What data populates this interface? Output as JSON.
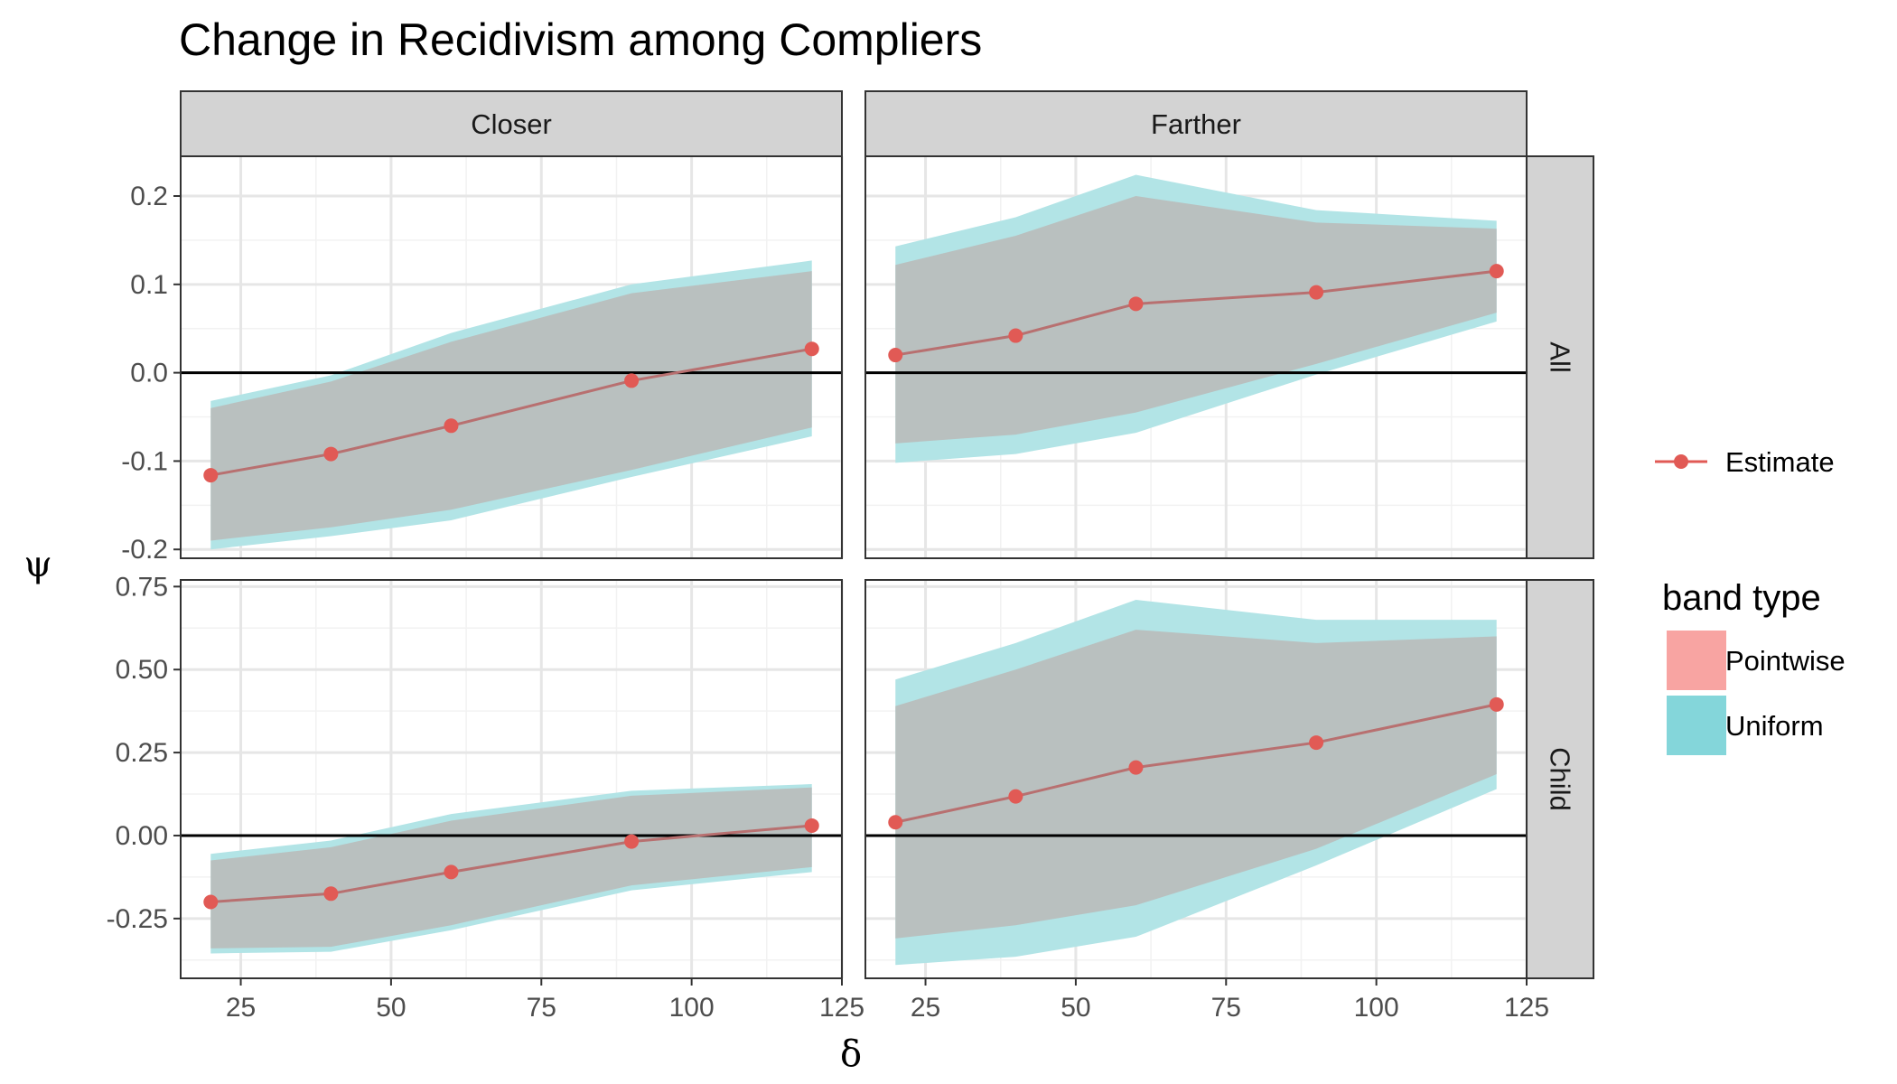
{
  "chart_data": {
    "type": "line",
    "title": "Change in Recidivism among Compliers",
    "xlabel": "δ",
    "ylabel": "ψ",
    "x": [
      20,
      40,
      60,
      90,
      120
    ],
    "xlim": [
      15,
      125
    ],
    "x_ticks": [
      25,
      50,
      75,
      100,
      125
    ],
    "columns": [
      "Closer",
      "Farther"
    ],
    "rows": [
      {
        "label": "All",
        "ylim": [
          -0.21,
          0.245
        ],
        "y_ticks": [
          -0.2,
          -0.1,
          0.0,
          0.1,
          0.2
        ],
        "y_tick_labels": [
          "-0.2",
          "-0.1",
          "0.0",
          "0.1",
          "0.2"
        ]
      },
      {
        "label": "Child",
        "ylim": [
          -0.43,
          0.77
        ],
        "y_ticks": [
          -0.25,
          0.0,
          0.25,
          0.5,
          0.75
        ],
        "y_tick_labels": [
          "-0.25",
          "0.00",
          "0.25",
          "0.50",
          "0.75"
        ]
      }
    ],
    "panels": [
      {
        "row": "All",
        "col": "Closer",
        "estimate": [
          -0.116,
          -0.092,
          -0.06,
          -0.009,
          0.027
        ],
        "pointwise_lower": [
          -0.19,
          -0.175,
          -0.155,
          -0.11,
          -0.062
        ],
        "pointwise_upper": [
          -0.04,
          -0.01,
          0.035,
          0.09,
          0.115
        ],
        "uniform_lower": [
          -0.2,
          -0.185,
          -0.167,
          -0.118,
          -0.072
        ],
        "uniform_upper": [
          -0.032,
          -0.003,
          0.045,
          0.1,
          0.127
        ]
      },
      {
        "row": "All",
        "col": "Farther",
        "estimate": [
          0.02,
          0.042,
          0.078,
          0.091,
          0.115
        ],
        "pointwise_lower": [
          -0.08,
          -0.07,
          -0.045,
          0.01,
          0.068
        ],
        "pointwise_upper": [
          0.122,
          0.155,
          0.2,
          0.17,
          0.163
        ],
        "uniform_lower": [
          -0.102,
          -0.092,
          -0.068,
          -0.002,
          0.058
        ],
        "uniform_upper": [
          0.143,
          0.176,
          0.224,
          0.184,
          0.172
        ]
      },
      {
        "row": "Child",
        "col": "Closer",
        "estimate": [
          -0.2,
          -0.175,
          -0.11,
          -0.018,
          0.03
        ],
        "pointwise_lower": [
          -0.34,
          -0.335,
          -0.27,
          -0.15,
          -0.095
        ],
        "pointwise_upper": [
          -0.075,
          -0.035,
          0.045,
          0.12,
          0.145
        ],
        "uniform_lower": [
          -0.355,
          -0.35,
          -0.285,
          -0.165,
          -0.11
        ],
        "uniform_upper": [
          -0.055,
          -0.015,
          0.065,
          0.135,
          0.155
        ]
      },
      {
        "row": "Child",
        "col": "Farther",
        "estimate": [
          0.04,
          0.118,
          0.205,
          0.28,
          0.395
        ],
        "pointwise_lower": [
          -0.31,
          -0.27,
          -0.21,
          -0.04,
          0.185
        ],
        "pointwise_upper": [
          0.39,
          0.5,
          0.62,
          0.58,
          0.6
        ],
        "uniform_lower": [
          -0.39,
          -0.365,
          -0.305,
          -0.09,
          0.14
        ],
        "uniform_upper": [
          0.47,
          0.58,
          0.71,
          0.65,
          0.65
        ]
      }
    ],
    "legend": {
      "estimate_label": "Estimate",
      "band_title": "band type",
      "band_labels": [
        "Pointwise",
        "Uniform"
      ]
    }
  },
  "colors": {
    "estimate": "#e15a55",
    "estimate_line": "#b87070",
    "pointwise": "#f8a4a2",
    "uniform": "#84d6da",
    "overlap_fill": "#b9c0bf",
    "uniform_only_fill": "#b2e4e6",
    "strip_bg": "#d3d3d3",
    "grid_major": "#e6e6e6",
    "grid_minor": "#f2f2f2"
  }
}
